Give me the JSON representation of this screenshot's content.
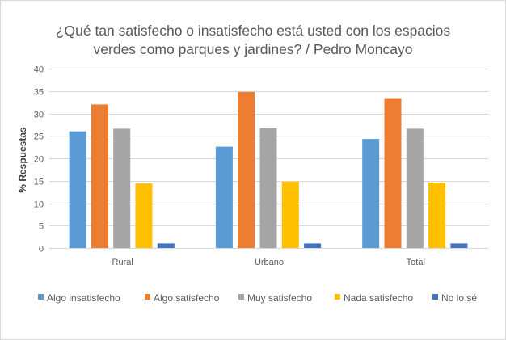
{
  "chart_data": {
    "type": "bar",
    "title_lines": [
      "¿Qué tan satisfecho o insatisfecho está usted con los espacios",
      "verdes como parques y jardines? / Pedro Moncayo"
    ],
    "xlabel": "",
    "ylabel": "% Respuestas",
    "ylim": [
      0,
      40
    ],
    "yticks": [
      0,
      5,
      10,
      15,
      20,
      25,
      30,
      35,
      40
    ],
    "grid": true,
    "legend_position": "bottom",
    "categories": [
      "Rural",
      "Urbano",
      "Total"
    ],
    "series": [
      {
        "name": "Algo insatisfecho",
        "color": "#5B9BD5",
        "values": [
          26.0,
          22.6,
          24.3
        ]
      },
      {
        "name": "Algo satisfecho",
        "color": "#ED7D31",
        "values": [
          32.0,
          34.8,
          33.4
        ]
      },
      {
        "name": "Muy satisfecho",
        "color": "#A5A5A5",
        "values": [
          26.6,
          26.7,
          26.6
        ]
      },
      {
        "name": "Nada satisfecho",
        "color": "#FFC000",
        "values": [
          14.4,
          14.8,
          14.6
        ]
      },
      {
        "name": "No lo sé",
        "color": "#4472C4",
        "values": [
          1.0,
          1.0,
          1.0
        ]
      }
    ]
  }
}
